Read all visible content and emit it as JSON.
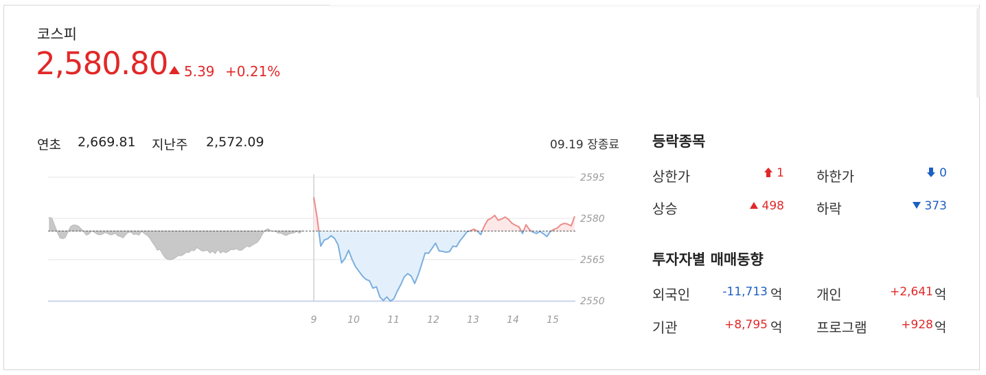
{
  "index": {
    "name": "코스피",
    "value": "2,580.80",
    "change": "5.39",
    "change_pct": "+0.21%",
    "direction": "up"
  },
  "stats": {
    "year_start_label": "연초",
    "year_start_value": "2,669.81",
    "last_week_label": "지난주",
    "last_week_value": "2,572.09",
    "status": "09.19 장종료"
  },
  "advance_decline": {
    "title": "등락종목",
    "upper_limit_label": "상한가",
    "upper_limit_value": "1",
    "lower_limit_label": "하한가",
    "lower_limit_value": "0",
    "rise_label": "상승",
    "rise_value": "498",
    "fall_label": "하락",
    "fall_value": "373"
  },
  "investors": {
    "title": "투자자별 매매동향",
    "unit": "억",
    "foreign_label": "외국인",
    "foreign_value": "-11,713",
    "individual_label": "개인",
    "individual_value": "+2,641",
    "institution_label": "기관",
    "institution_value": "+8,795",
    "program_label": "프로그램",
    "program_value": "+928"
  },
  "colors": {
    "up": "#e12828",
    "down": "#1c5fc2",
    "prev_day_fill": "#c8c8c8",
    "today_below_fill": "#e3f0fb",
    "today_below_line": "#7aaede",
    "today_above_fill": "#fde8e8",
    "today_above_line": "#ec8a8a"
  },
  "chart_data": {
    "type": "line",
    "ylim": [
      2550,
      2595
    ],
    "yticks": [
      2595,
      2580,
      2565,
      2550
    ],
    "xticks": [
      "9",
      "10",
      "11",
      "12",
      "13",
      "14",
      "15"
    ],
    "reference_value": 2575.41,
    "grid": true,
    "series": [
      {
        "values_prev_day": [
          2580.4,
          2580.0,
          2577.5,
          2574.9,
          2572.9,
          2572.6,
          2573.0,
          2575.0,
          2577.0,
          2577.6,
          2577.6,
          2577.2,
          2576.3,
          2575.2,
          2573.9,
          2574.3,
          2575.4,
          2575.0,
          2574.3,
          2574.0,
          2574.2,
          2574.8,
          2574.6,
          2574.0,
          2574.1,
          2574.6,
          2573.6,
          2573.4,
          2572.9,
          2574.1,
          2574.9,
          2575.0,
          2574.1,
          2574.3,
          2573.9,
          2575.3,
          2574.5,
          2573.9,
          2573.0,
          2571.4,
          2570.1,
          2568.4,
          2568.7,
          2567.0,
          2565.6,
          2565.1,
          2564.9,
          2565.2,
          2565.8,
          2566.5,
          2566.4,
          2566.9,
          2567.7,
          2567.6,
          2568.5,
          2568.2,
          2569.4,
          2568.8,
          2568.1,
          2568.2,
          2568.4,
          2567.4,
          2568.0,
          2567.2,
          2568.7,
          2567.4,
          2568.0,
          2567.5,
          2568.0,
          2568.7,
          2568.6,
          2569.0,
          2568.4,
          2568.4,
          2569.2,
          2569.9,
          2569.6,
          2570.2,
          2570.8,
          2571.3,
          2572.6,
          2574.4,
          2575.7,
          2576.3,
          2575.6,
          2575.3,
          2575.2,
          2574.6,
          2574.6,
          2574.1,
          2573.8,
          2574.3,
          2574.6,
          2574.7,
          2575.3,
          2574.6,
          2575.5
        ],
        "values_today": [
          2587.7,
          2579.9,
          2569.9,
          2572.1,
          2572.6,
          2573.7,
          2572.7,
          2570.3,
          2563.8,
          2565.5,
          2568.4,
          2565.1,
          2562.4,
          2560.7,
          2559.0,
          2557.8,
          2557.3,
          2554.6,
          2555.1,
          2551.4,
          2550.1,
          2551.4,
          2549.9,
          2550.7,
          2553.5,
          2555.9,
          2558.7,
          2559.9,
          2559.0,
          2556.3,
          2559.4,
          2563.3,
          2567.4,
          2567.3,
          2569.1,
          2571.0,
          2568.2,
          2568.0,
          2567.7,
          2567.9,
          2569.9,
          2569.7,
          2571.8,
          2573.4,
          2575.1,
          2575.5,
          2576.1,
          2575.4,
          2574.1,
          2577.2,
          2579.4,
          2580.1,
          2581.1,
          2579.3,
          2579.8,
          2580.5,
          2579.6,
          2578.2,
          2577.5,
          2576.9,
          2574.5,
          2577.7,
          2575.9,
          2575.0,
          2574.5,
          2575.3,
          2574.4,
          2573.4,
          2575.2,
          2576.0,
          2576.5,
          2577.7,
          2578.2,
          2577.9,
          2577.3,
          2580.8
        ]
      }
    ]
  }
}
